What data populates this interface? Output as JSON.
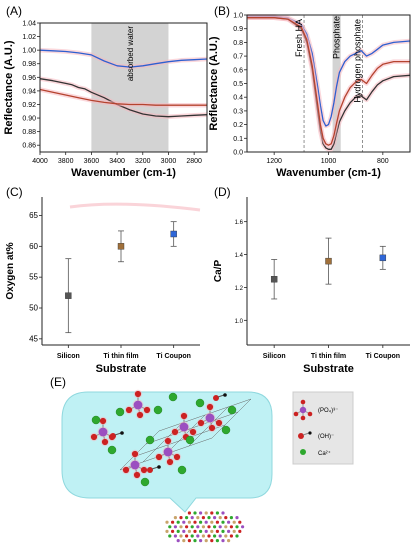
{
  "panels": {
    "A": "(A)",
    "B": "(B)",
    "C": "(C)",
    "D": "(D)",
    "E": "(E)"
  },
  "colors": {
    "blue": "#2f5fd0",
    "black": "#333333",
    "red": "#b5432f",
    "pink_band": "#f7b8c0",
    "gray_band": "#d3d3d3",
    "err_gray": "#555555",
    "marker_si": "#555555",
    "marker_ti_film": "#a0703a",
    "marker_ti_coupon": "#2f67d8",
    "bubble": "#bff1f4",
    "phosphorus": "#9b4fc0",
    "oxygen": "#cc2222",
    "calcium": "#2ea82e",
    "hydrogen": "#111111"
  },
  "chart_data": [
    {
      "panel": "A",
      "type": "line",
      "xlabel": "Wavenumber (cm-1)",
      "ylabel": "Reflectance (A.U.)",
      "xlim": [
        4000,
        2700
      ],
      "ylim": [
        0.85,
        1.04
      ],
      "xticks": [
        4000,
        3800,
        3600,
        3400,
        3200,
        3000,
        2800
      ],
      "yticks": [
        0.86,
        0.88,
        0.9,
        0.92,
        0.94,
        0.96,
        0.98,
        1.0,
        1.02,
        1.04
      ],
      "shaded_region": {
        "from": 3600,
        "to": 3000,
        "label": "absorbed water"
      },
      "series": [
        {
          "color": "#2f5fd0",
          "x": [
            4000,
            3900,
            3800,
            3700,
            3600,
            3500,
            3400,
            3300,
            3200,
            3100,
            3000,
            2900,
            2800,
            2700
          ],
          "y": [
            1.0,
            0.999,
            0.998,
            0.996,
            0.993,
            0.984,
            0.977,
            0.975,
            0.977,
            0.98,
            0.983,
            0.985,
            0.986,
            0.987
          ]
        },
        {
          "color": "#333333",
          "x": [
            4000,
            3900,
            3800,
            3750,
            3700,
            3650,
            3600,
            3500,
            3400,
            3300,
            3200,
            3100,
            3000,
            2900,
            2800,
            2700
          ],
          "y": [
            0.958,
            0.955,
            0.951,
            0.949,
            0.945,
            0.943,
            0.938,
            0.93,
            0.92,
            0.912,
            0.906,
            0.903,
            0.902,
            0.903,
            0.904,
            0.905
          ]
        },
        {
          "color": "#b5432f",
          "x": [
            4000,
            3900,
            3800,
            3700,
            3600,
            3500,
            3400,
            3300,
            3200,
            3100,
            3000,
            2900,
            2800,
            2700
          ],
          "y": [
            0.942,
            0.938,
            0.934,
            0.93,
            0.926,
            0.923,
            0.921,
            0.92,
            0.92,
            0.919,
            0.919,
            0.919,
            0.919,
            0.919
          ]
        }
      ]
    },
    {
      "panel": "B",
      "type": "line",
      "xlabel": "Wavenumber (cm-1)",
      "ylabel": "Reflectance (A.U.)",
      "xlim": [
        1300,
        700
      ],
      "ylim": [
        0.0,
        1.0
      ],
      "xticks": [
        1200,
        1000,
        800
      ],
      "yticks": [
        0.0,
        0.1,
        0.2,
        0.3,
        0.4,
        0.5,
        0.6,
        0.7,
        0.8,
        0.9,
        1.0
      ],
      "vlines": [
        {
          "x": 1090,
          "label": "Fresh HA"
        },
        {
          "x": 875,
          "label": "Hydrogen phosphate"
        }
      ],
      "shaded_region": {
        "from": 985,
        "to": 955,
        "label": "Phosphate"
      },
      "series": [
        {
          "color": "#2f5fd0",
          "x": [
            1300,
            1200,
            1150,
            1100,
            1080,
            1060,
            1040,
            1030,
            1020,
            1010,
            1000,
            990,
            980,
            970,
            960,
            940,
            920,
            900,
            880,
            860,
            840,
            820,
            800,
            760,
            700
          ],
          "y": [
            0.99,
            0.99,
            0.98,
            0.93,
            0.86,
            0.72,
            0.48,
            0.34,
            0.23,
            0.19,
            0.2,
            0.26,
            0.36,
            0.48,
            0.58,
            0.66,
            0.7,
            0.72,
            0.74,
            0.7,
            0.72,
            0.75,
            0.78,
            0.8,
            0.81
          ]
        },
        {
          "color": "#333333",
          "x": [
            1300,
            1200,
            1150,
            1100,
            1080,
            1060,
            1040,
            1030,
            1020,
            1010,
            1000,
            990,
            980,
            970,
            960,
            940,
            920,
            900,
            880,
            860,
            840,
            820,
            800,
            760,
            700
          ],
          "y": [
            0.98,
            0.98,
            0.97,
            0.9,
            0.8,
            0.6,
            0.3,
            0.15,
            0.06,
            0.03,
            0.02,
            0.02,
            0.06,
            0.14,
            0.22,
            0.3,
            0.36,
            0.4,
            0.41,
            0.38,
            0.44,
            0.49,
            0.52,
            0.55,
            0.56
          ]
        },
        {
          "color": "#b5432f",
          "x": [
            1300,
            1200,
            1150,
            1100,
            1080,
            1060,
            1040,
            1030,
            1020,
            1010,
            1000,
            990,
            980,
            970,
            960,
            940,
            920,
            900,
            880,
            860,
            840,
            820,
            800,
            760,
            700
          ],
          "y": [
            0.98,
            0.98,
            0.97,
            0.91,
            0.82,
            0.63,
            0.35,
            0.2,
            0.1,
            0.06,
            0.05,
            0.06,
            0.12,
            0.21,
            0.3,
            0.4,
            0.47,
            0.51,
            0.53,
            0.5,
            0.56,
            0.61,
            0.64,
            0.66,
            0.66
          ]
        }
      ]
    },
    {
      "panel": "C",
      "type": "scatter",
      "xlabel": "Substrate",
      "ylabel": "Oxygen at%",
      "categories": [
        "Silicon",
        "Ti thin film",
        "Ti Coupon"
      ],
      "values": [
        52,
        60,
        62
      ],
      "errors": [
        6,
        2.5,
        2
      ],
      "colors": [
        "#555555",
        "#a0703a",
        "#2f67d8"
      ],
      "ylim": [
        44,
        68
      ],
      "yticks": [
        45,
        50,
        55,
        60,
        65
      ]
    },
    {
      "panel": "D",
      "type": "scatter",
      "xlabel": "Substrate",
      "ylabel": "Ca/P",
      "categories": [
        "Silicon",
        "Ti thin film",
        "Ti Coupon"
      ],
      "values": [
        1.25,
        1.36,
        1.38
      ],
      "errors": [
        0.12,
        0.14,
        0.07
      ],
      "colors": [
        "#555555",
        "#a0703a",
        "#2f67d8"
      ],
      "ylim": [
        0.85,
        1.75
      ],
      "yticks": [
        1.0,
        1.2,
        1.4,
        1.6
      ]
    }
  ],
  "legend_E": {
    "phosphate": "(PO₄)³⁻",
    "hydroxide": "(OH)⁻",
    "calcium": "Ca²⁺"
  }
}
